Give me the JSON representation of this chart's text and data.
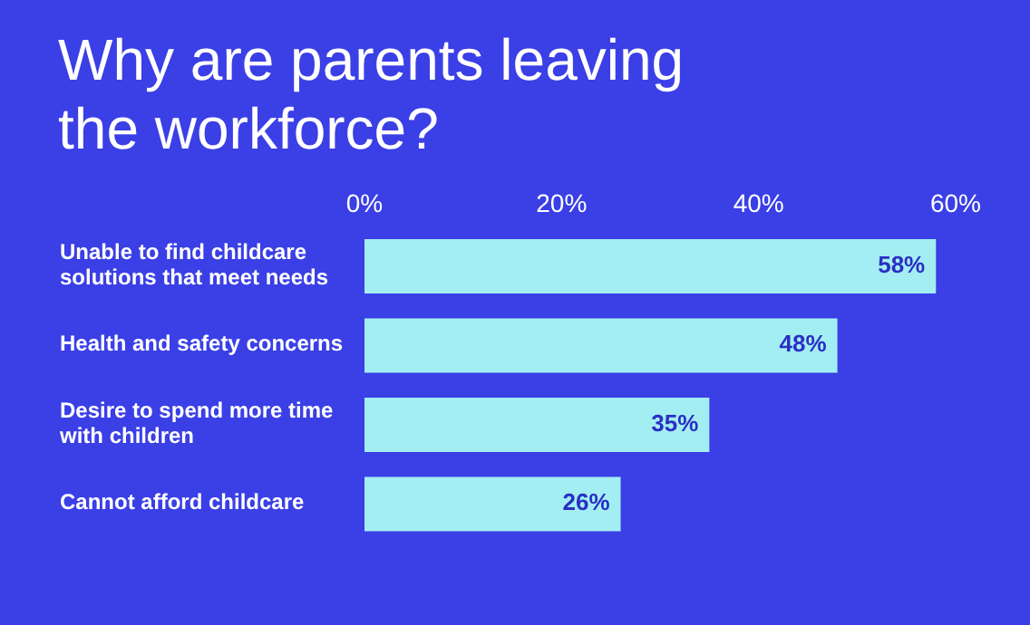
{
  "chart_data": {
    "type": "bar",
    "orientation": "horizontal",
    "title": "Why are parents leaving the workforce?",
    "categories": [
      "Unable to find childcare solutions that meet needs",
      "Health and safety concerns",
      "Desire to spend more time with children",
      "Cannot afford childcare"
    ],
    "values": [
      58,
      48,
      35,
      26
    ],
    "color": "#a3eef2",
    "value_labels": [
      "58%",
      "48%",
      "35%",
      "26%"
    ],
    "xlim": [
      0,
      60
    ],
    "xticks": [
      {
        "value": 0,
        "label": "0%"
      },
      {
        "value": 20,
        "label": "20%"
      },
      {
        "value": 40,
        "label": "40%"
      },
      {
        "value": 60,
        "label": "60%"
      }
    ],
    "grid": false,
    "legend": false
  }
}
